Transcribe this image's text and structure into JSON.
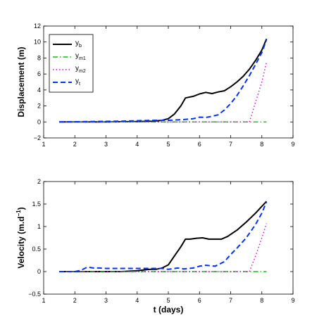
{
  "chart_data": [
    {
      "type": "line",
      "ylabel": "Displacement (m)",
      "xlabel": "",
      "xlim": [
        1,
        9
      ],
      "ylim": [
        -2,
        12
      ],
      "xticks": [
        1,
        2,
        3,
        4,
        5,
        6,
        7,
        8,
        9
      ],
      "yticks": [
        -2,
        0,
        2,
        4,
        6,
        8,
        10,
        12
      ],
      "xtick_labels": [
        "1",
        "2",
        "3",
        "4",
        "5",
        "6",
        "7",
        "8",
        "9"
      ],
      "ytick_labels": [
        "−2",
        "0",
        "2",
        "4",
        "6",
        "8",
        "10",
        "12"
      ],
      "legend": {
        "position": "top-left",
        "entries": [
          {
            "base": "y",
            "sub": "b"
          },
          {
            "base": "y",
            "sub": "m1"
          },
          {
            "base": "y",
            "sub": "m2"
          },
          {
            "base": "y",
            "sub": "t"
          }
        ]
      },
      "series": [
        {
          "name": "y_b",
          "color": "#000000",
          "dash": "solid",
          "x": [
            1.5,
            3.0,
            4.0,
            4.5,
            4.8,
            5.0,
            5.2,
            5.4,
            5.55,
            5.8,
            6.0,
            6.2,
            6.4,
            6.6,
            6.8,
            7.0,
            7.2,
            7.4,
            7.6,
            7.8,
            8.0,
            8.15
          ],
          "y": [
            0,
            0,
            0.05,
            0.1,
            0.2,
            0.4,
            1.0,
            2.0,
            3.0,
            3.2,
            3.5,
            3.7,
            3.55,
            3.75,
            3.9,
            4.4,
            5.0,
            5.7,
            6.6,
            7.7,
            9.0,
            10.4
          ]
        },
        {
          "name": "y_m1",
          "color": "#00cc00",
          "dash": "dashdot",
          "x": [
            1.5,
            8.15
          ],
          "y": [
            0,
            0
          ]
        },
        {
          "name": "y_m2",
          "color": "#dd00dd",
          "dash": "dotted",
          "x": [
            1.5,
            7.6,
            7.8,
            8.0,
            8.15
          ],
          "y": [
            0,
            0,
            2.5,
            5.0,
            7.5
          ]
        },
        {
          "name": "y_t",
          "color": "#0033ff",
          "dash": "dashed",
          "x": [
            1.5,
            3.5,
            4.5,
            5.0,
            5.5,
            5.8,
            6.0,
            6.2,
            6.4,
            6.6,
            6.8,
            7.0,
            7.2,
            7.4,
            7.6,
            7.8,
            8.0,
            8.15
          ],
          "y": [
            0,
            0.1,
            0.2,
            0.2,
            0.3,
            0.4,
            0.6,
            0.55,
            0.7,
            0.9,
            1.5,
            2.3,
            3.3,
            4.5,
            5.8,
            7.2,
            8.7,
            10.3
          ]
        }
      ]
    },
    {
      "type": "line",
      "ylabel_base": "Velocity (m.d",
      "ylabel_sup": "−1",
      "ylabel_tail": ")",
      "xlabel": "t (days)",
      "xlim": [
        1,
        9
      ],
      "ylim": [
        -0.5,
        2
      ],
      "xticks": [
        1,
        2,
        3,
        4,
        5,
        6,
        7,
        8,
        9
      ],
      "yticks": [
        -0.5,
        0,
        0.5,
        1,
        1.5,
        2
      ],
      "xtick_labels": [
        "1",
        "2",
        "3",
        "4",
        "5",
        "6",
        "7",
        "8",
        "9"
      ],
      "ytick_labels": [
        "−0.5",
        "0",
        "0.5",
        "1",
        "1.5",
        "2"
      ],
      "series": [
        {
          "name": "y_b",
          "color": "#000000",
          "dash": "solid",
          "x": [
            1.5,
            3.5,
            4.0,
            4.4,
            4.6,
            4.8,
            5.0,
            5.2,
            5.4,
            5.55,
            5.7,
            5.9,
            6.1,
            6.3,
            6.5,
            6.7,
            6.9,
            7.2,
            7.5,
            7.8,
            8.0,
            8.15
          ],
          "y": [
            0,
            0,
            0.02,
            0.05,
            0.05,
            0.08,
            0.15,
            0.35,
            0.55,
            0.72,
            0.72,
            0.74,
            0.75,
            0.72,
            0.72,
            0.72,
            0.78,
            0.92,
            1.1,
            1.3,
            1.45,
            1.56
          ]
        },
        {
          "name": "y_m1",
          "color": "#00cc00",
          "dash": "dashdot",
          "x": [
            1.5,
            8.15
          ],
          "y": [
            0,
            0
          ]
        },
        {
          "name": "y_m2",
          "color": "#dd00dd",
          "dash": "dotted",
          "x": [
            1.5,
            7.6,
            7.8,
            8.0,
            8.15
          ],
          "y": [
            0,
            0,
            0.35,
            0.75,
            1.07
          ]
        },
        {
          "name": "y_t",
          "color": "#0033ff",
          "dash": "dashed",
          "x": [
            1.5,
            2.0,
            2.2,
            2.4,
            2.6,
            2.8,
            3.0,
            3.5,
            4.0,
            4.5,
            4.8,
            5.0,
            5.3,
            5.5,
            5.8,
            6.0,
            6.2,
            6.5,
            6.8,
            7.0,
            7.2,
            7.5,
            7.8,
            8.0,
            8.15
          ],
          "y": [
            0,
            0,
            0.03,
            0.1,
            0.08,
            0.08,
            0.07,
            0.07,
            0.07,
            0.07,
            0.07,
            0.05,
            0.08,
            0.06,
            0.08,
            0.12,
            0.14,
            0.12,
            0.22,
            0.38,
            0.52,
            0.75,
            1.05,
            1.3,
            1.55
          ]
        }
      ]
    }
  ]
}
